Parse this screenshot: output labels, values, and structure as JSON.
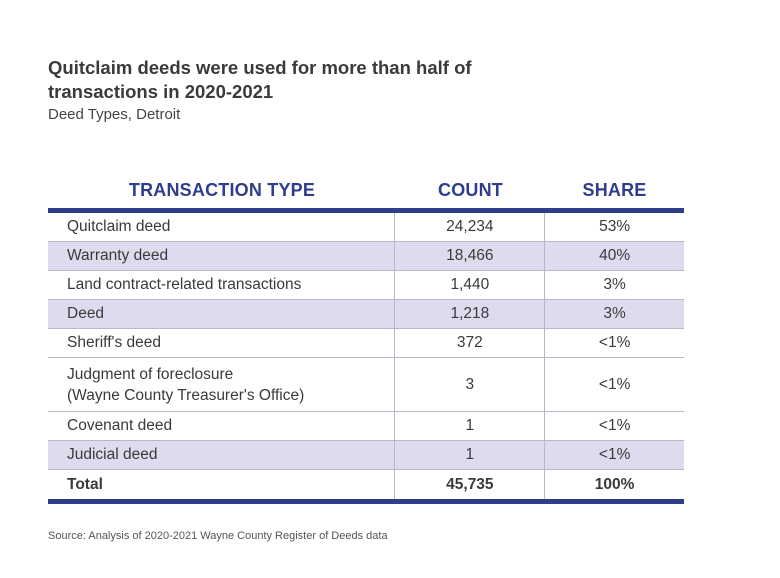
{
  "chart_data": {
    "type": "table",
    "title": "Quitclaim deeds were used for more than half of transactions in 2020-2021",
    "subtitle": "Deed Types, Detroit",
    "columns": [
      "TRANSACTION TYPE",
      "COUNT",
      "SHARE"
    ],
    "rows": [
      {
        "type": "Quitclaim deed",
        "count": "24,234",
        "share": "53%"
      },
      {
        "type": "Warranty deed",
        "count": "18,466",
        "share": "40%"
      },
      {
        "type": "Land contract-related transactions",
        "count": "1,440",
        "share": "3%"
      },
      {
        "type": "Deed",
        "count": "1,218",
        "share": "3%"
      },
      {
        "type": "Sheriff's deed",
        "count": "372",
        "share": "<1%"
      },
      {
        "type": "Judgment of foreclosure (Wayne County Treasurer's Office)",
        "type_line1": "Judgment of foreclosure",
        "type_line2": "(Wayne County Treasurer's Office)",
        "count": "3",
        "share": "<1%"
      },
      {
        "type": "Covenant deed",
        "count": "1",
        "share": "<1%"
      },
      {
        "type": "Judicial deed",
        "count": "1",
        "share": "<1%"
      }
    ],
    "total": {
      "type": "Total",
      "count": "45,735",
      "share": "100%"
    },
    "source": "Source: Analysis of 2020-2021 Wayne County Register of Deeds data"
  },
  "colors": {
    "header_text": "#2e3d8c",
    "rule": "#2e3d8c",
    "shaded_row": "#dcdcee"
  }
}
